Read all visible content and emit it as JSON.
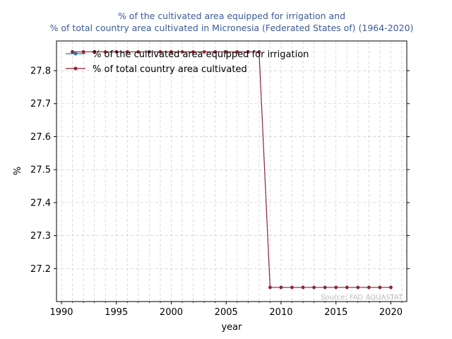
{
  "chart_data": {
    "type": "line",
    "title_lines": [
      "% of the cultivated area equipped for irrigation and",
      "% of total country area cultivated in Micronesia (Federated States of) (1964-2020)"
    ],
    "xlabel": "year",
    "ylabel": "%",
    "xlim": [
      1989.55,
      2021.45
    ],
    "ylim": [
      27.1,
      27.89
    ],
    "xticks": [
      1990,
      1995,
      2000,
      2005,
      2010,
      2015,
      2020
    ],
    "yticks": [
      27.2,
      27.3,
      27.4,
      27.5,
      27.6,
      27.7,
      27.8
    ],
    "minor_xgrid": true,
    "grid": true,
    "legend_position": "top-left",
    "source_note": "Source: FAO AQUASTAT",
    "colors": {
      "title": "#3b5a96",
      "series_irrigation": "#1f77b4",
      "series_cultivated": "#8b2332",
      "grid": "#d3d3d3",
      "source": "#bbbbbb"
    },
    "series": [
      {
        "name": "% of the cultivated area equipped for irrigation",
        "x": [
          1991
        ],
        "y": [
          27.857
        ]
      },
      {
        "name": "% of total country area cultivated",
        "x": [
          1991,
          1992,
          1993,
          1994,
          1995,
          1996,
          1997,
          1998,
          1999,
          2000,
          2001,
          2002,
          2003,
          2004,
          2005,
          2006,
          2007,
          2008,
          2009,
          2010,
          2011,
          2012,
          2013,
          2014,
          2015,
          2016,
          2017,
          2018,
          2019,
          2020
        ],
        "y": [
          27.857,
          27.857,
          27.857,
          27.857,
          27.857,
          27.857,
          27.857,
          27.857,
          27.857,
          27.857,
          27.857,
          27.857,
          27.857,
          27.857,
          27.857,
          27.857,
          27.857,
          27.857,
          27.143,
          27.143,
          27.143,
          27.143,
          27.143,
          27.143,
          27.143,
          27.143,
          27.143,
          27.143,
          27.143,
          27.143
        ]
      }
    ]
  }
}
